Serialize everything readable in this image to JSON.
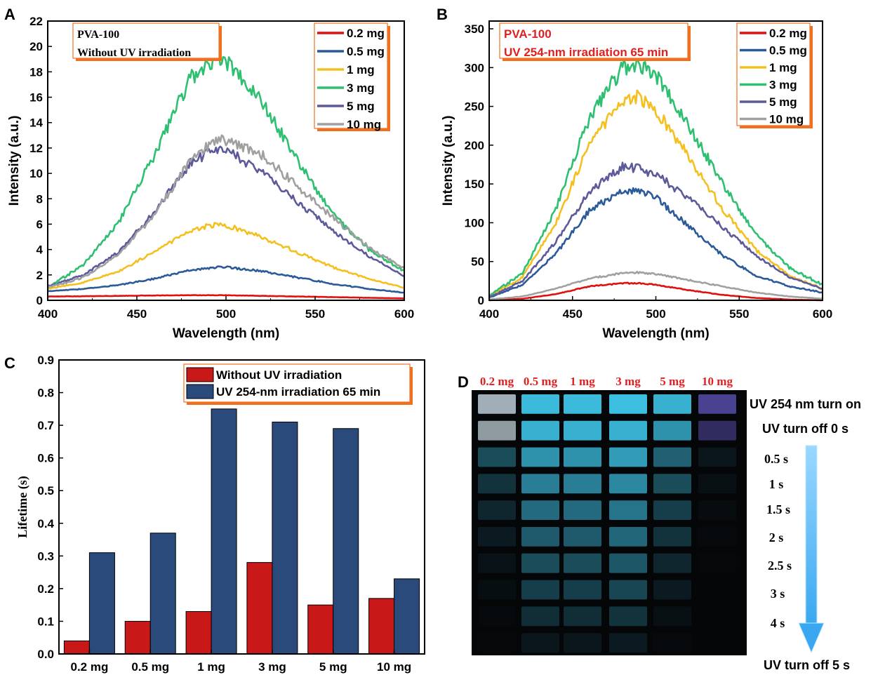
{
  "panel_labels": {
    "A": "A",
    "B": "B",
    "C": "C",
    "D": "D"
  },
  "colors": {
    "0.2 mg": "#e01010",
    "0.5 mg": "#2a5a9a",
    "1 mg": "#f4c020",
    "3 mg": "#2ec070",
    "5 mg": "#5c5a9a",
    "10 mg": "#a0a0a0",
    "bar_red": "#c81818",
    "bar_blue": "#2a4a7c",
    "annot_red": "#e02020",
    "box_border": "#f07020"
  },
  "chart_data": [
    {
      "id": "A",
      "type": "line",
      "annotation": [
        "PVA-100",
        "Without UV irradiation"
      ],
      "xlabel": "Wavelength (nm)",
      "ylabel": "Intensity (a.u.)",
      "xlim": [
        400,
        600
      ],
      "ylim": [
        0,
        22
      ],
      "xticks": [
        400,
        450,
        500,
        550,
        600
      ],
      "yticks": [
        0,
        2,
        4,
        6,
        8,
        10,
        12,
        14,
        16,
        18,
        20,
        22
      ],
      "legend_position": "top-right",
      "x": [
        400,
        420,
        440,
        460,
        480,
        495,
        500,
        520,
        540,
        560,
        580,
        600
      ],
      "series": [
        {
          "name": "0.2 mg",
          "values": [
            0.3,
            0.32,
            0.35,
            0.38,
            0.4,
            0.4,
            0.4,
            0.35,
            0.3,
            0.25,
            0.2,
            0.15
          ]
        },
        {
          "name": "0.5 mg",
          "values": [
            0.7,
            0.9,
            1.2,
            1.7,
            2.4,
            2.6,
            2.6,
            2.3,
            1.8,
            1.3,
            0.9,
            0.6
          ]
        },
        {
          "name": "1 mg",
          "values": [
            0.9,
            1.4,
            2.3,
            3.8,
            5.5,
            6.0,
            5.9,
            5.0,
            3.8,
            2.6,
            1.7,
            1.0
          ]
        },
        {
          "name": "3 mg",
          "values": [
            1.0,
            2.8,
            6.2,
            11.5,
            17.5,
            19.2,
            18.8,
            15.8,
            11.0,
            6.8,
            4.0,
            2.3
          ]
        },
        {
          "name": "5 mg",
          "values": [
            1.1,
            2.0,
            3.8,
            7.0,
            10.8,
            12.0,
            11.8,
            10.2,
            7.8,
            5.5,
            3.5,
            1.9
          ]
        },
        {
          "name": "10 mg",
          "values": [
            1.0,
            1.8,
            3.6,
            6.8,
            11.0,
            12.8,
            12.6,
            11.5,
            9.0,
            6.5,
            4.2,
            2.5
          ]
        }
      ]
    },
    {
      "id": "B",
      "type": "line",
      "annotation": [
        "PVA-100",
        "UV 254-nm irradiation 65 min"
      ],
      "xlabel": "Wavelength (nm)",
      "ylabel": "Intensity (a.u.)",
      "xlim": [
        400,
        600
      ],
      "ylim": [
        0,
        360
      ],
      "xticks": [
        400,
        450,
        500,
        550,
        600
      ],
      "yticks": [
        0,
        50,
        100,
        150,
        200,
        250,
        300,
        350
      ],
      "legend_position": "top-right",
      "x": [
        400,
        420,
        440,
        460,
        480,
        490,
        500,
        520,
        540,
        560,
        580,
        600
      ],
      "series": [
        {
          "name": "0.2 mg",
          "values": [
            0,
            2,
            8,
            18,
            22,
            22,
            20,
            13,
            7,
            3,
            1,
            0
          ]
        },
        {
          "name": "0.5 mg",
          "values": [
            3,
            20,
            60,
            115,
            142,
            142,
            132,
            95,
            58,
            32,
            18,
            10
          ]
        },
        {
          "name": "1 mg",
          "values": [
            5,
            30,
            100,
            200,
            258,
            262,
            245,
            185,
            118,
            65,
            32,
            15
          ]
        },
        {
          "name": "3 mg",
          "values": [
            6,
            35,
            118,
            235,
            300,
            305,
            290,
            225,
            150,
            85,
            42,
            20
          ]
        },
        {
          "name": "5 mg",
          "values": [
            4,
            25,
            75,
            140,
            172,
            170,
            162,
            132,
            95,
            58,
            30,
            15
          ]
        },
        {
          "name": "10 mg",
          "values": [
            1,
            5,
            15,
            28,
            35,
            36,
            34,
            26,
            18,
            10,
            5,
            2
          ]
        }
      ]
    },
    {
      "id": "C",
      "type": "bar",
      "categories": [
        "0.2 mg",
        "0.5 mg",
        "1 mg",
        "3 mg",
        "5 mg",
        "10 mg"
      ],
      "xlabel": "",
      "ylabel": "Lifetime (s)",
      "ylim": [
        0,
        0.9
      ],
      "yticks": [
        "0.0",
        "0.1",
        "0.2",
        "0.3",
        "0.4",
        "0.5",
        "0.6",
        "0.7",
        "0.8",
        "0.9"
      ],
      "legend_position": "top-right",
      "series": [
        {
          "name": "Without UV irradiation",
          "values": [
            0.04,
            0.1,
            0.13,
            0.28,
            0.15,
            0.17
          ]
        },
        {
          "name": "UV 254-nm irradiation 65 min",
          "values": [
            0.31,
            0.37,
            0.75,
            0.71,
            0.69,
            0.23
          ]
        }
      ]
    }
  ],
  "panel_d": {
    "sample_labels": [
      "0.2 mg",
      "0.5 mg",
      "1 mg",
      "3 mg",
      "5 mg",
      "10 mg"
    ],
    "row_labels": [
      "UV 254 nm turn on",
      "UV turn off 0 s",
      "0.5 s",
      "1 s",
      "1.5 s",
      "2 s",
      "2.5 s",
      "3 s",
      "4 s",
      "UV turn off 5 s"
    ],
    "brightness": [
      [
        0.85,
        0.9,
        0.9,
        0.92,
        0.85,
        0.6
      ],
      [
        0.75,
        0.85,
        0.85,
        0.85,
        0.7,
        0.4
      ],
      [
        0.35,
        0.7,
        0.7,
        0.75,
        0.45,
        0.08
      ],
      [
        0.22,
        0.6,
        0.6,
        0.65,
        0.35,
        0.05
      ],
      [
        0.16,
        0.5,
        0.5,
        0.55,
        0.28,
        0.03
      ],
      [
        0.1,
        0.42,
        0.42,
        0.48,
        0.22,
        0.02
      ],
      [
        0.06,
        0.35,
        0.35,
        0.4,
        0.16,
        0.01
      ],
      [
        0.04,
        0.28,
        0.28,
        0.32,
        0.1,
        0.0
      ],
      [
        0.02,
        0.2,
        0.2,
        0.22,
        0.05,
        0.0
      ],
      [
        0.01,
        0.08,
        0.08,
        0.1,
        0.02,
        0.0
      ]
    ]
  }
}
